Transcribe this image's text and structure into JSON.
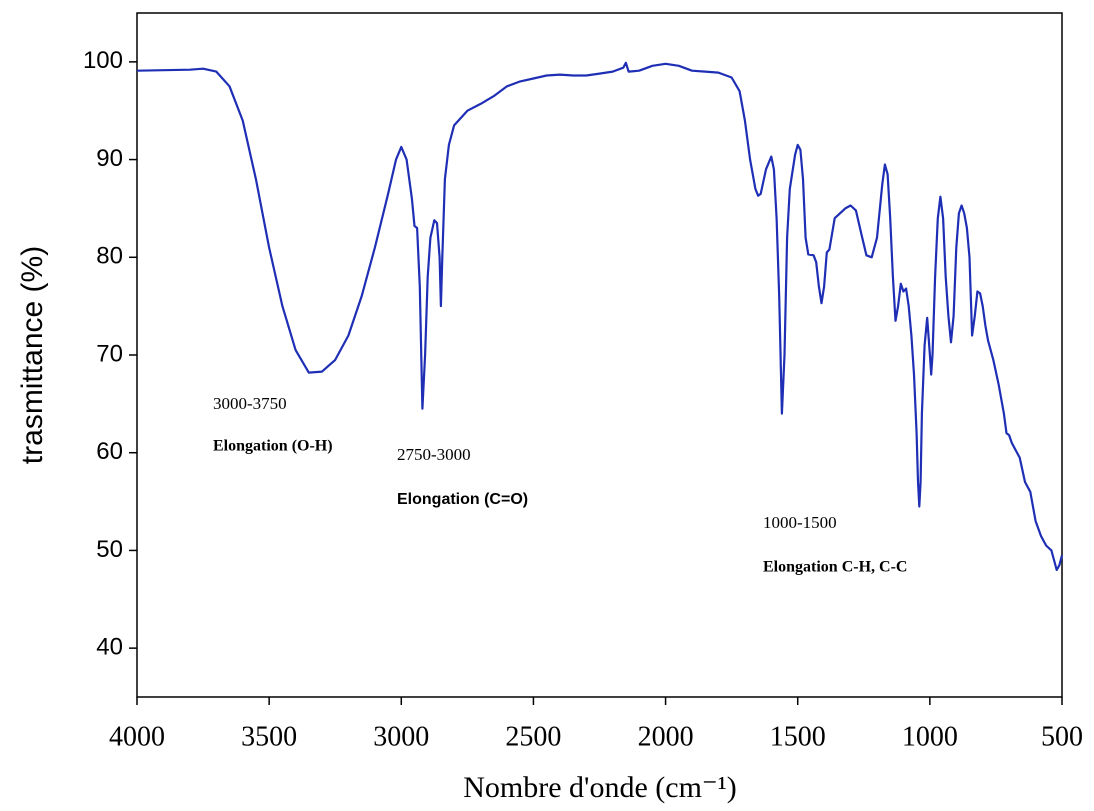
{
  "chart_data": {
    "type": "line",
    "xlabel": "Nombre d'onde  (cm⁻¹)",
    "ylabel": "trasmittance (%)",
    "color": "#1f2fb5",
    "xlim": [
      4000,
      500
    ],
    "xticks": [
      4000,
      3500,
      3000,
      2500,
      2000,
      1500,
      1000,
      500
    ],
    "ylim": [
      35,
      105
    ],
    "yticks": [
      40,
      50,
      60,
      70,
      80,
      90,
      100
    ],
    "annotations": [
      "3000-3750",
      "Elongation (O-H)",
      "2750-3000",
      "Elongation (C=O)",
      "1000-1500",
      "Elongation C-H, C-C"
    ],
    "x": [
      4000,
      3800,
      3750,
      3700,
      3650,
      3600,
      3550,
      3500,
      3450,
      3400,
      3350,
      3300,
      3250,
      3200,
      3150,
      3100,
      3050,
      3020,
      3000,
      2980,
      2960,
      2950,
      2940,
      2930,
      2920,
      2910,
      2900,
      2890,
      2875,
      2865,
      2855,
      2850,
      2845,
      2835,
      2820,
      2800,
      2750,
      2700,
      2650,
      2600,
      2550,
      2500,
      2450,
      2400,
      2350,
      2300,
      2250,
      2200,
      2160,
      2150,
      2140,
      2100,
      2050,
      2000,
      1950,
      1900,
      1850,
      1800,
      1750,
      1720,
      1700,
      1680,
      1660,
      1650,
      1640,
      1620,
      1600,
      1590,
      1580,
      1570,
      1560,
      1550,
      1540,
      1530,
      1510,
      1500,
      1490,
      1480,
      1470,
      1460,
      1440,
      1430,
      1420,
      1410,
      1400,
      1390,
      1380,
      1360,
      1340,
      1320,
      1300,
      1280,
      1260,
      1240,
      1220,
      1200,
      1180,
      1170,
      1160,
      1150,
      1140,
      1130,
      1120,
      1110,
      1100,
      1090,
      1080,
      1070,
      1060,
      1050,
      1045,
      1040,
      1035,
      1030,
      1020,
      1010,
      1000,
      995,
      990,
      980,
      970,
      960,
      950,
      940,
      930,
      920,
      910,
      900,
      890,
      880,
      870,
      860,
      850,
      840,
      830,
      820,
      810,
      800,
      790,
      780,
      760,
      740,
      720,
      710,
      700,
      690,
      680,
      660,
      640,
      620,
      600,
      580,
      560,
      540,
      520,
      510,
      500
    ],
    "values": [
      99.1,
      99.2,
      99.3,
      99.0,
      97.5,
      94,
      88,
      81,
      75,
      70.5,
      68.2,
      68.3,
      69.5,
      72,
      76,
      81,
      86.5,
      90,
      91.3,
      90,
      86,
      83.2,
      83,
      77,
      64.5,
      70,
      78,
      82,
      83.8,
      83.5,
      80,
      75,
      80,
      88,
      91.5,
      93.5,
      95,
      95.7,
      96.5,
      97.5,
      98,
      98.3,
      98.6,
      98.7,
      98.6,
      98.6,
      98.8,
      99.0,
      99.4,
      99.9,
      99.0,
      99.1,
      99.6,
      99.8,
      99.6,
      99.1,
      99.0,
      98.9,
      98.4,
      97,
      94,
      90,
      87,
      86.3,
      86.5,
      89,
      90.3,
      89,
      84,
      76,
      64,
      70,
      82,
      87,
      90.5,
      91.5,
      91,
      88,
      82,
      80.3,
      80.2,
      79.5,
      77,
      75.3,
      77,
      80.5,
      80.8,
      84,
      84.5,
      85,
      85.3,
      84.8,
      82.5,
      80.2,
      80,
      82,
      87.5,
      89.5,
      88.5,
      84,
      78,
      73.5,
      75,
      77.3,
      76.5,
      76.8,
      75,
      72,
      68,
      62,
      57,
      54.5,
      57,
      64,
      71,
      73.8,
      70,
      68,
      70,
      78,
      84,
      86.2,
      84,
      78,
      74,
      71.3,
      74,
      81,
      84.5,
      85.3,
      84.5,
      83,
      80,
      72,
      74,
      76.5,
      76.3,
      75,
      73,
      71.5,
      69.5,
      67,
      64,
      62,
      61.8,
      61,
      60.5,
      59.5,
      57,
      56,
      53,
      51.5,
      50.5,
      50,
      48,
      48.5,
      49.5
    ]
  }
}
